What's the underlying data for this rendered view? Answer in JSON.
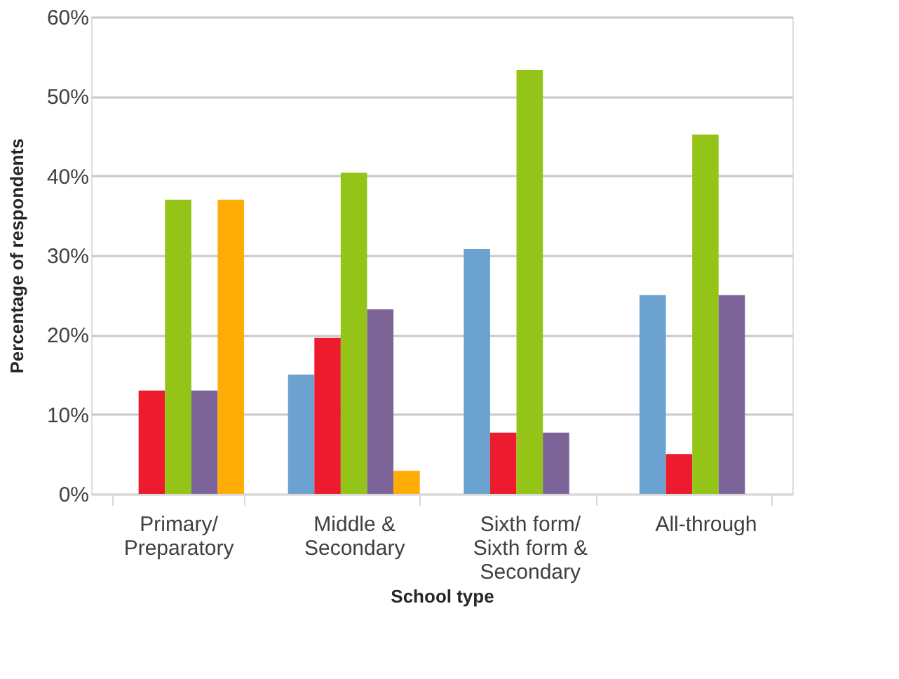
{
  "chart_data": {
    "type": "bar",
    "xlabel": "School type",
    "ylabel": "Percentage of respondents",
    "categories": [
      "Primary/ Preparatory",
      "Middle & Secondary",
      "Sixth form/ Sixth form & Secondary",
      "All-through"
    ],
    "series": [
      {
        "color": "#6ba2d0",
        "values": [
          0,
          15,
          30.8,
          25
        ]
      },
      {
        "color": "#ed1b2e",
        "values": [
          13,
          19.6,
          7.7,
          5
        ]
      },
      {
        "color": "#94c417",
        "values": [
          37,
          40.4,
          53.3,
          45.2
        ]
      },
      {
        "color": "#7c6499",
        "values": [
          13,
          23.2,
          7.7,
          25
        ]
      },
      {
        "color": "#ffac06",
        "values": [
          37,
          2.9,
          0,
          0
        ]
      }
    ],
    "ylim": [
      0,
      60
    ],
    "yticks": [
      {
        "value": 0,
        "label": "0%"
      },
      {
        "value": 10,
        "label": "10%"
      },
      {
        "value": 20,
        "label": "20%"
      },
      {
        "value": 30,
        "label": "30%"
      },
      {
        "value": 40,
        "label": "40%"
      },
      {
        "value": 50,
        "label": "50%"
      },
      {
        "value": 60,
        "label": "60%"
      }
    ],
    "grid": "y",
    "legend": false
  }
}
